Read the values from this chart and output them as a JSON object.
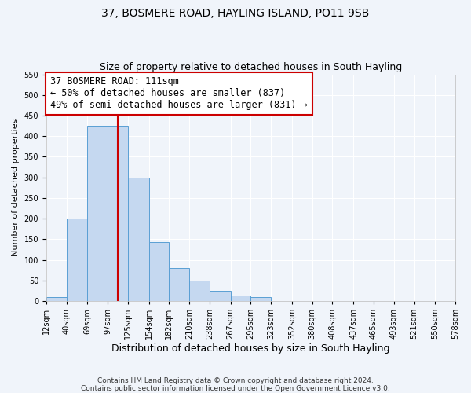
{
  "title": "37, BOSMERE ROAD, HAYLING ISLAND, PO11 9SB",
  "subtitle": "Size of property relative to detached houses in South Hayling",
  "xlabel": "Distribution of detached houses by size in South Hayling",
  "ylabel": "Number of detached properties",
  "bar_edges": [
    12,
    40,
    69,
    97,
    125,
    154,
    182,
    210,
    238,
    267,
    295,
    323,
    352,
    380,
    408,
    437,
    465,
    493,
    521,
    550,
    578
  ],
  "bar_heights": [
    10,
    200,
    425,
    425,
    300,
    143,
    80,
    50,
    25,
    13,
    10,
    0,
    0,
    0,
    0,
    0,
    0,
    0,
    0,
    0
  ],
  "tick_labels": [
    "12sqm",
    "40sqm",
    "69sqm",
    "97sqm",
    "125sqm",
    "154sqm",
    "182sqm",
    "210sqm",
    "238sqm",
    "267sqm",
    "295sqm",
    "323sqm",
    "352sqm",
    "380sqm",
    "408sqm",
    "437sqm",
    "465sqm",
    "493sqm",
    "521sqm",
    "550sqm",
    "578sqm"
  ],
  "bar_color": "#c5d8f0",
  "bar_edge_color": "#5a9fd4",
  "vline_x": 111,
  "vline_color": "#cc0000",
  "ylim": [
    0,
    550
  ],
  "yticks": [
    0,
    50,
    100,
    150,
    200,
    250,
    300,
    350,
    400,
    450,
    500,
    550
  ],
  "annotation_title": "37 BOSMERE ROAD: 111sqm",
  "annotation_line1": "← 50% of detached houses are smaller (837)",
  "annotation_line2": "49% of semi-detached houses are larger (831) →",
  "annotation_box_color": "#ffffff",
  "annotation_box_edge": "#cc0000",
  "footer_line1": "Contains HM Land Registry data © Crown copyright and database right 2024.",
  "footer_line2": "Contains public sector information licensed under the Open Government Licence v3.0.",
  "background_color": "#f0f4fa",
  "grid_color": "#ffffff",
  "title_fontsize": 10,
  "subtitle_fontsize": 9,
  "xlabel_fontsize": 9,
  "ylabel_fontsize": 8,
  "tick_fontsize": 7,
  "annotation_title_fontsize": 9,
  "annotation_fontsize": 8.5,
  "footer_fontsize": 6.5
}
